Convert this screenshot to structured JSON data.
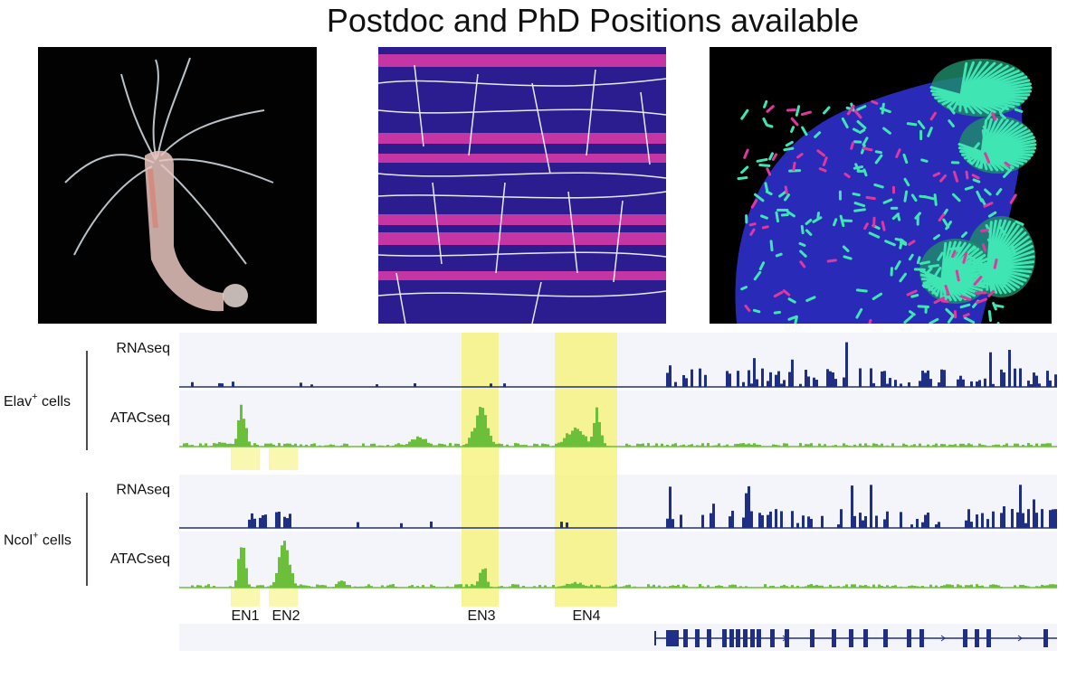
{
  "title": "Postdoc and PhD Positions available",
  "groups": [
    {
      "name": "Elav",
      "sup": "+",
      "suffix": " cells",
      "tracks": [
        {
          "label": "RNAseq",
          "kind": "rna"
        },
        {
          "label": "ATACseq",
          "kind": "atac"
        }
      ]
    },
    {
      "name": "Ncol",
      "sup": "+",
      "suffix": " cells",
      "tracks": [
        {
          "label": "RNAseq",
          "kind": "rna"
        },
        {
          "label": "ATACseq",
          "kind": "atac"
        }
      ]
    }
  ],
  "enhancers": [
    "EN1",
    "EN2",
    "EN3",
    "EN4"
  ],
  "colors": {
    "rna": "#1f2f86",
    "atac": "#6cbf3a",
    "highlight": "#f6f27c",
    "track_bg": "#f3f5fa"
  }
}
